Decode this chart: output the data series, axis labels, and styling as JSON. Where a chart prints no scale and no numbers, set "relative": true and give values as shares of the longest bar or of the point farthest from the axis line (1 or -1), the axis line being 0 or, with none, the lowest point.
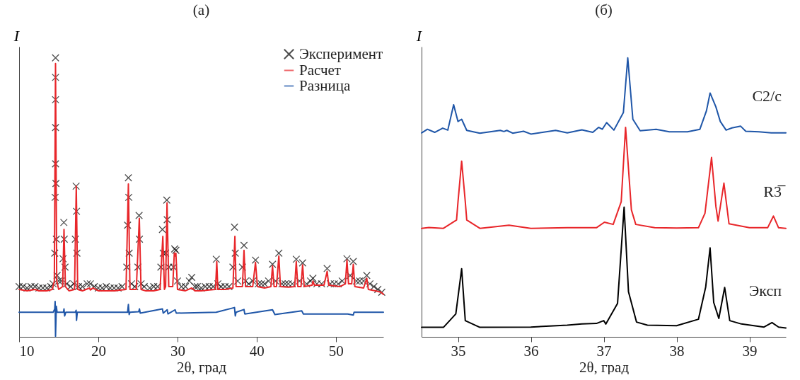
{
  "chart_data": [
    {
      "type": "line",
      "title": "(а)",
      "xlabel": "2θ, град",
      "ylabel": "I",
      "relative": true,
      "xlim": [
        10,
        56
      ],
      "xticks": [
        10,
        20,
        30,
        40,
        50
      ],
      "legend": "top right",
      "series": [
        {
          "name": "Эксперимент",
          "type": "scatter",
          "marker": "cross",
          "color": "#000000",
          "x": [
            10,
            10.5,
            11,
            11.5,
            12,
            12.5,
            13,
            13.5,
            14,
            14.3,
            14.5,
            14.55,
            14.6,
            14.6,
            14.6,
            14.6,
            14.6,
            14.65,
            14.7,
            14.8,
            15,
            15.3,
            15.55,
            15.65,
            15.7,
            15.8,
            16,
            16.5,
            16.9,
            17.1,
            17.2,
            17.25,
            17.3,
            17.5,
            18,
            18.6,
            19,
            19.5,
            20,
            20.5,
            21,
            21.5,
            22,
            22.5,
            23,
            23.6,
            23.7,
            23.8,
            23.85,
            23.9,
            24.2,
            24.6,
            25,
            25.15,
            25.2,
            25.4,
            25.8,
            26.5,
            27,
            27.5,
            27.9,
            28.1,
            28.2,
            28.5,
            28.65,
            28.7,
            28.9,
            29.5,
            29.65,
            29.8,
            30,
            30.5,
            31,
            31.5,
            31.8,
            32.2,
            32.5,
            33,
            33.5,
            34,
            34.5,
            34.9,
            35.1,
            35.5,
            36,
            36.5,
            37,
            37.2,
            37.3,
            37.6,
            38.2,
            38.4,
            38.6,
            39,
            39.5,
            39.85,
            40.2,
            40.6,
            41,
            41.5,
            42,
            42.4,
            42.8,
            43.2,
            43.6,
            44,
            44.5,
            45,
            45.4,
            45.8,
            46.3,
            46.8,
            47.1,
            47.6,
            48.2,
            48.9,
            49.3,
            49.8,
            50.3,
            50.8,
            51.4,
            51.8,
            52.2,
            52.6,
            53,
            53.5,
            53.9,
            54.3,
            54.8,
            55.3,
            55.8
          ],
          "values": [
            0.18,
            0.18,
            0.175,
            0.18,
            0.18,
            0.175,
            0.175,
            0.175,
            0.18,
            0.19,
            0.3,
            0.5,
            0.62,
            0.75,
            0.85,
            0.93,
            1.0,
            0.55,
            0.35,
            0.22,
            0.2,
            0.2,
            0.28,
            0.41,
            0.35,
            0.25,
            0.19,
            0.18,
            0.19,
            0.35,
            0.54,
            0.45,
            0.3,
            0.18,
            0.18,
            0.19,
            0.19,
            0.18,
            0.175,
            0.175,
            0.18,
            0.175,
            0.175,
            0.175,
            0.18,
            0.25,
            0.4,
            0.57,
            0.5,
            0.3,
            0.19,
            0.18,
            0.25,
            0.435,
            0.35,
            0.19,
            0.18,
            0.175,
            0.18,
            0.18,
            0.25,
            0.385,
            0.3,
            0.3,
            0.49,
            0.42,
            0.25,
            0.25,
            0.315,
            0.31,
            0.2,
            0.18,
            0.18,
            0.2,
            0.213,
            0.18,
            0.18,
            0.175,
            0.18,
            0.18,
            0.18,
            0.278,
            0.19,
            0.18,
            0.18,
            0.18,
            0.25,
            0.393,
            0.3,
            0.2,
            0.25,
            0.328,
            0.2,
            0.19,
            0.2,
            0.275,
            0.19,
            0.19,
            0.19,
            0.2,
            0.26,
            0.2,
            0.3,
            0.19,
            0.19,
            0.19,
            0.19,
            0.278,
            0.2,
            0.265,
            0.19,
            0.2,
            0.21,
            0.19,
            0.19,
            0.245,
            0.19,
            0.19,
            0.19,
            0.2,
            0.28,
            0.22,
            0.27,
            0.2,
            0.2,
            0.2,
            0.22,
            0.19,
            0.18,
            0.17,
            0.16
          ]
        },
        {
          "name": "Расчет",
          "type": "line",
          "color": "#e8262a",
          "x": [
            10,
            11,
            12,
            12.5,
            13.5,
            14.2,
            14.45,
            14.6,
            14.75,
            15,
            15.5,
            15.67,
            15.85,
            16.3,
            17,
            17.22,
            17.4,
            18,
            18.9,
            19,
            19.3,
            20,
            21,
            22,
            23.5,
            23.8,
            24,
            24.8,
            25.18,
            25.4,
            26,
            27,
            27.8,
            28.15,
            28.35,
            28.5,
            28.68,
            28.9,
            29.4,
            29.6,
            29.7,
            29.8,
            30,
            31,
            31.8,
            32.2,
            33,
            34,
            34.8,
            34.96,
            35.1,
            36,
            37,
            37.25,
            37.4,
            38.2,
            38.4,
            38.6,
            39.5,
            39.85,
            40.1,
            41,
            41.8,
            42,
            42.2,
            42.5,
            42.8,
            43,
            44,
            44.8,
            45,
            45.2,
            45.6,
            45.8,
            46,
            47,
            47.1,
            47.3,
            48.5,
            48.9,
            49.1,
            50.5,
            51.2,
            51.4,
            51.6,
            52,
            52.2,
            52.4,
            53.5,
            53.9,
            54.1,
            55,
            55.7,
            56
          ],
          "values": [
            0.17,
            0.165,
            0.17,
            0.165,
            0.165,
            0.17,
            0.2,
            0.98,
            0.2,
            0.17,
            0.18,
            0.385,
            0.18,
            0.165,
            0.17,
            0.54,
            0.17,
            0.165,
            0.175,
            0.168,
            0.175,
            0.165,
            0.165,
            0.165,
            0.17,
            0.548,
            0.17,
            0.17,
            0.425,
            0.17,
            0.165,
            0.165,
            0.17,
            0.36,
            0.17,
            0.18,
            0.48,
            0.18,
            0.18,
            0.3,
            0.29,
            0.3,
            0.17,
            0.165,
            0.175,
            0.165,
            0.165,
            0.168,
            0.17,
            0.27,
            0.17,
            0.17,
            0.175,
            0.36,
            0.18,
            0.18,
            0.31,
            0.18,
            0.18,
            0.267,
            0.18,
            0.175,
            0.18,
            0.254,
            0.18,
            0.18,
            0.29,
            0.18,
            0.178,
            0.18,
            0.27,
            0.18,
            0.18,
            0.258,
            0.18,
            0.185,
            0.2,
            0.185,
            0.185,
            0.235,
            0.185,
            0.18,
            0.19,
            0.275,
            0.19,
            0.19,
            0.26,
            0.18,
            0.175,
            0.21,
            0.17,
            0.165,
            0.16,
            0.152
          ]
        },
        {
          "name": "Разница",
          "type": "line",
          "color": "#1f56a8",
          "x": [
            10,
            14.3,
            14.5,
            14.55,
            14.6,
            14.7,
            14.8,
            15.6,
            15.67,
            15.75,
            15.9,
            17.1,
            17.2,
            17.25,
            17.35,
            23.7,
            23.8,
            23.9,
            24,
            25.1,
            25.2,
            25.3,
            28.1,
            28.2,
            28.7,
            28.8,
            29.7,
            29.85,
            34.9,
            37.2,
            37.3,
            37.4,
            38.4,
            38.5,
            42,
            42.3,
            45.7,
            45.9,
            51.5,
            52.2,
            52.3,
            56
          ],
          "values": [
            0.088,
            0.088,
            0.1,
            0.127,
            0.002,
            0.11,
            0.088,
            0.088,
            0.1,
            0.075,
            0.088,
            0.088,
            0.095,
            0.059,
            0.088,
            0.088,
            0.116,
            0.08,
            0.088,
            0.09,
            0.1,
            0.085,
            0.1,
            0.085,
            0.097,
            0.082,
            0.097,
            0.085,
            0.088,
            0.105,
            0.075,
            0.088,
            0.098,
            0.082,
            0.097,
            0.08,
            0.093,
            0.082,
            0.082,
            0.078,
            0.088,
            0.088
          ]
        }
      ]
    },
    {
      "type": "line",
      "title": "(б)",
      "xlabel": "2θ, град",
      "ylabel": "I",
      "relative": true,
      "xlim": [
        34.5,
        39.5
      ],
      "xticks": [
        35,
        36,
        37,
        38,
        39
      ],
      "series": [
        {
          "name": "C2/c",
          "color": "#1f56a8",
          "x": [
            34.5,
            34.58,
            34.68,
            34.79,
            34.86,
            34.94,
            35.0,
            35.05,
            35.12,
            35.3,
            35.58,
            35.63,
            35.67,
            35.75,
            35.9,
            36.0,
            36.34,
            36.5,
            36.7,
            36.85,
            36.93,
            36.98,
            37.04,
            37.14,
            37.27,
            37.33,
            37.4,
            37.5,
            37.72,
            37.9,
            38.15,
            38.32,
            38.41,
            38.46,
            38.54,
            38.6,
            38.68,
            38.76,
            38.88,
            38.95,
            39.13,
            39.3,
            39.5
          ],
          "values": [
            0.731,
            0.744,
            0.733,
            0.748,
            0.741,
            0.832,
            0.772,
            0.78,
            0.74,
            0.73,
            0.74,
            0.736,
            0.74,
            0.73,
            0.737,
            0.727,
            0.74,
            0.731,
            0.742,
            0.733,
            0.751,
            0.744,
            0.768,
            0.741,
            0.804,
            1.0,
            0.78,
            0.739,
            0.744,
            0.735,
            0.735,
            0.744,
            0.81,
            0.874,
            0.824,
            0.772,
            0.741,
            0.749,
            0.755,
            0.737,
            0.735,
            0.731,
            0.731
          ]
        },
        {
          "name": "R3̅",
          "color": "#e8262a",
          "x": [
            34.5,
            34.6,
            34.8,
            34.98,
            35.0,
            35.05,
            35.1,
            35.12,
            35.3,
            35.7,
            36.0,
            36.5,
            36.9,
            37.01,
            37.13,
            37.24,
            37.3,
            37.38,
            37.44,
            37.7,
            38.0,
            38.3,
            38.39,
            38.48,
            38.54,
            38.57,
            38.65,
            38.72,
            39.0,
            39.25,
            39.33,
            39.4,
            39.5
          ],
          "values": [
            0.389,
            0.392,
            0.389,
            0.419,
            0.484,
            0.63,
            0.484,
            0.419,
            0.389,
            0.4,
            0.389,
            0.391,
            0.391,
            0.411,
            0.403,
            0.484,
            0.751,
            0.455,
            0.403,
            0.391,
            0.39,
            0.391,
            0.443,
            0.643,
            0.467,
            0.415,
            0.551,
            0.405,
            0.391,
            0.391,
            0.433,
            0.391,
            0.389
          ]
        },
        {
          "name": "Эксп",
          "color": "#000000",
          "x": [
            34.5,
            34.8,
            34.97,
            35.05,
            35.1,
            35.3,
            36.0,
            36.5,
            36.7,
            36.9,
            37.0,
            37.03,
            37.19,
            37.28,
            37.34,
            37.45,
            37.6,
            38.0,
            38.3,
            38.4,
            38.46,
            38.51,
            38.58,
            38.66,
            38.73,
            38.89,
            39.2,
            39.31,
            39.4,
            39.5
          ],
          "values": [
            0.034,
            0.034,
            0.082,
            0.244,
            0.058,
            0.034,
            0.035,
            0.042,
            0.046,
            0.048,
            0.058,
            0.046,
            0.12,
            0.465,
            0.162,
            0.053,
            0.042,
            0.04,
            0.063,
            0.179,
            0.319,
            0.123,
            0.066,
            0.177,
            0.058,
            0.046,
            0.035,
            0.051,
            0.035,
            0.032
          ]
        }
      ]
    }
  ]
}
